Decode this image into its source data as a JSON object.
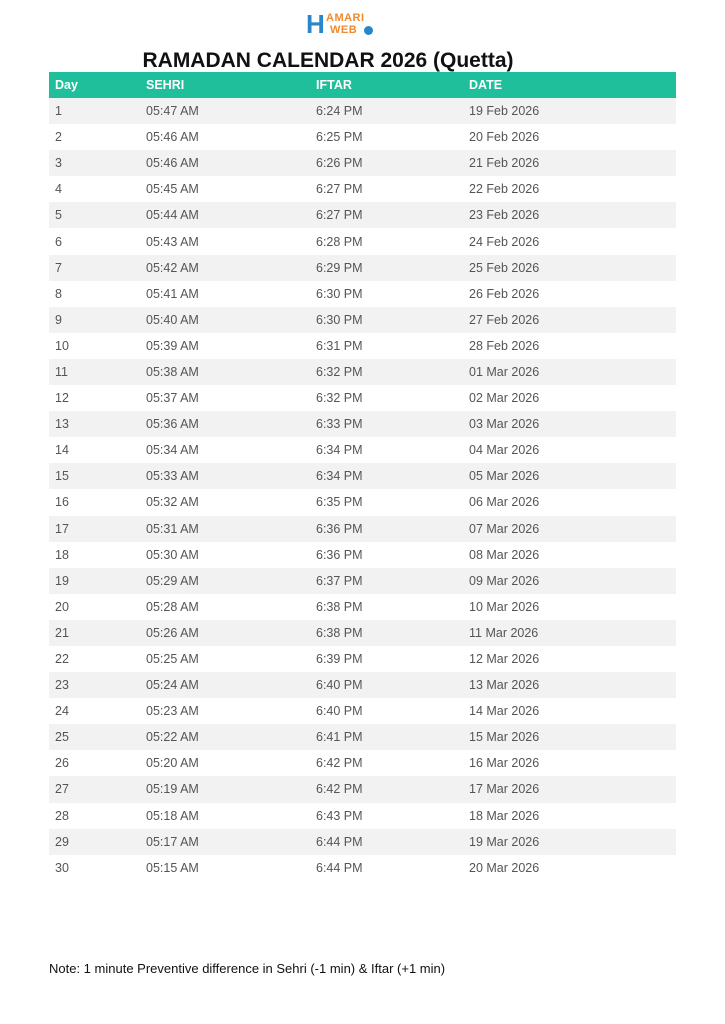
{
  "logo": {
    "text": "HAMARI WEB",
    "colors": {
      "blue": "#2a86c8",
      "orange": "#f08a2c"
    }
  },
  "title": "RAMADAN CALENDAR 2026 (Quetta)",
  "table": {
    "headers": [
      "Day",
      "SEHRI",
      "IFTAR",
      "DATE"
    ],
    "header_color": "#1fbf9c",
    "rows": [
      [
        "1",
        "05:47 AM",
        "6:24 PM",
        "19 Feb 2026"
      ],
      [
        "2",
        "05:46 AM",
        "6:25 PM",
        "20 Feb 2026"
      ],
      [
        "3",
        "05:46 AM",
        "6:26 PM",
        "21 Feb 2026"
      ],
      [
        "4",
        "05:45 AM",
        "6:27 PM",
        "22 Feb 2026"
      ],
      [
        "5",
        "05:44 AM",
        "6:27 PM",
        "23 Feb 2026"
      ],
      [
        "6",
        "05:43 AM",
        "6:28 PM",
        "24 Feb 2026"
      ],
      [
        "7",
        "05:42 AM",
        "6:29 PM",
        "25 Feb 2026"
      ],
      [
        "8",
        "05:41 AM",
        "6:30 PM",
        "26 Feb 2026"
      ],
      [
        "9",
        "05:40 AM",
        "6:30 PM",
        "27 Feb 2026"
      ],
      [
        "10",
        "05:39 AM",
        "6:31 PM",
        "28 Feb 2026"
      ],
      [
        "11",
        "05:38 AM",
        "6:32 PM",
        "01 Mar 2026"
      ],
      [
        "12",
        "05:37 AM",
        "6:32 PM",
        "02 Mar 2026"
      ],
      [
        "13",
        "05:36 AM",
        "6:33 PM",
        "03 Mar 2026"
      ],
      [
        "14",
        "05:34 AM",
        "6:34 PM",
        "04 Mar 2026"
      ],
      [
        "15",
        "05:33 AM",
        "6:34 PM",
        "05 Mar 2026"
      ],
      [
        "16",
        "05:32 AM",
        "6:35 PM",
        "06 Mar 2026"
      ],
      [
        "17",
        "05:31 AM",
        "6:36 PM",
        "07 Mar 2026"
      ],
      [
        "18",
        "05:30 AM",
        "6:36 PM",
        "08 Mar 2026"
      ],
      [
        "19",
        "05:29 AM",
        "6:37 PM",
        "09 Mar 2026"
      ],
      [
        "20",
        "05:28 AM",
        "6:38 PM",
        "10 Mar 2026"
      ],
      [
        "21",
        "05:26 AM",
        "6:38 PM",
        "11 Mar 2026"
      ],
      [
        "22",
        "05:25 AM",
        "6:39 PM",
        "12 Mar 2026"
      ],
      [
        "23",
        "05:24 AM",
        "6:40 PM",
        "13 Mar 2026"
      ],
      [
        "24",
        "05:23 AM",
        "6:40 PM",
        "14 Mar 2026"
      ],
      [
        "25",
        "05:22 AM",
        "6:41 PM",
        "15 Mar 2026"
      ],
      [
        "26",
        "05:20 AM",
        "6:42 PM",
        "16 Mar 2026"
      ],
      [
        "27",
        "05:19 AM",
        "6:42 PM",
        "17 Mar 2026"
      ],
      [
        "28",
        "05:18 AM",
        "6:43 PM",
        "18 Mar 2026"
      ],
      [
        "29",
        "05:17 AM",
        "6:44 PM",
        "19 Mar 2026"
      ],
      [
        "30",
        "05:15 AM",
        "6:44 PM",
        "20 Mar 2026"
      ]
    ]
  },
  "note": "Note: 1 minute Preventive difference in Sehri (-1 min) & Iftar (+1 min)"
}
